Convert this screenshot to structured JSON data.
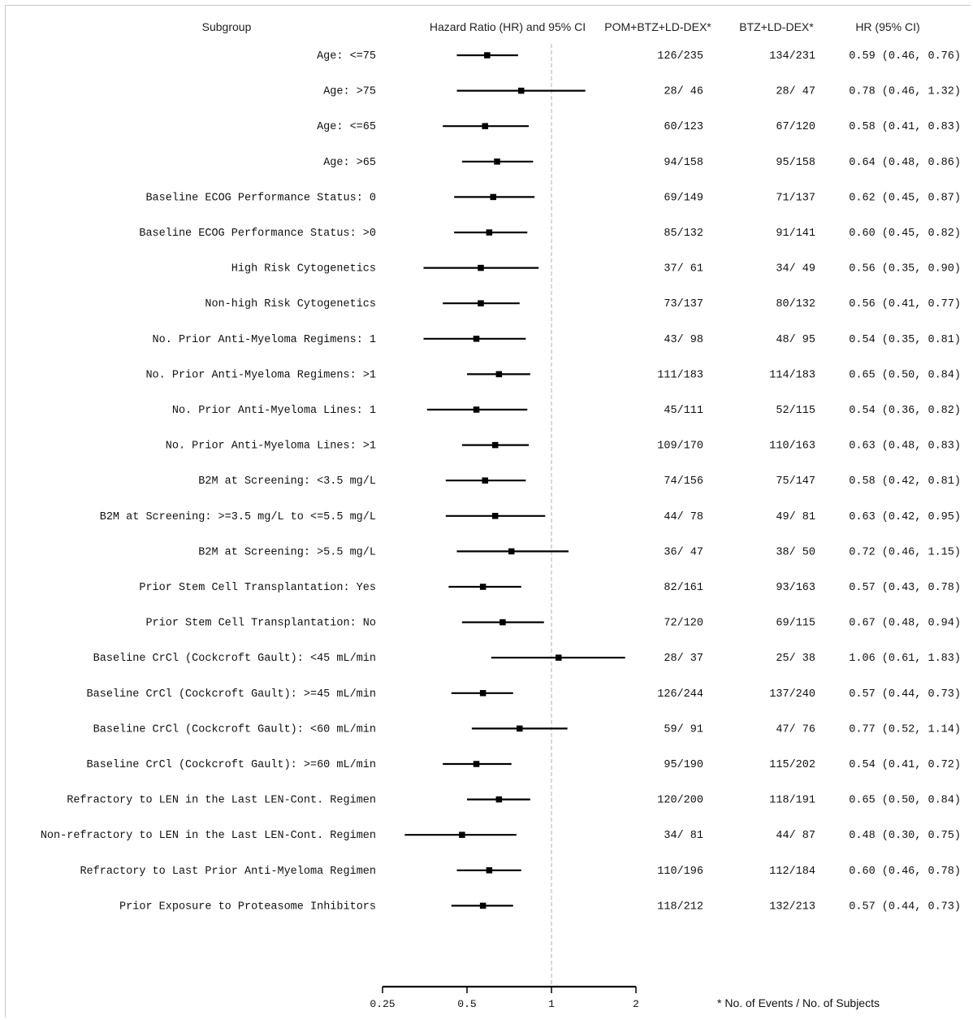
{
  "chart_data": {
    "type": "forest",
    "headers": {
      "subgroup": "Subgroup",
      "hr_plot": "Hazard Ratio (HR) and 95% CI",
      "group1": "POM+BTZ+LD-DEX*",
      "group2": "BTZ+LD-DEX*",
      "hr_ci": "HR (95% CI)"
    },
    "x_axis": {
      "scale": "log",
      "range": [
        0.25,
        2
      ],
      "ticks": [
        0.25,
        0.5,
        1,
        2
      ],
      "tick_labels": [
        "0.25",
        "0.5",
        "1",
        "2"
      ],
      "reference_line": 1
    },
    "footnote": "* No. of Events / No. of Subjects",
    "rows": [
      {
        "label": "Age: <=75",
        "hr": 0.59,
        "lo": 0.46,
        "hi": 0.76,
        "g1": "126/235",
        "g2": "134/231",
        "ci_text": "0.59 (0.46, 0.76)"
      },
      {
        "label": "Age: >75",
        "hr": 0.78,
        "lo": 0.46,
        "hi": 1.32,
        "g1": "28/ 46",
        "g2": "28/ 47",
        "ci_text": "0.78 (0.46, 1.32)"
      },
      {
        "label": "Age: <=65",
        "hr": 0.58,
        "lo": 0.41,
        "hi": 0.83,
        "g1": "60/123",
        "g2": "67/120",
        "ci_text": "0.58 (0.41, 0.83)"
      },
      {
        "label": "Age: >65",
        "hr": 0.64,
        "lo": 0.48,
        "hi": 0.86,
        "g1": "94/158",
        "g2": "95/158",
        "ci_text": "0.64 (0.48, 0.86)"
      },
      {
        "label": "Baseline ECOG Performance Status: 0",
        "hr": 0.62,
        "lo": 0.45,
        "hi": 0.87,
        "g1": "69/149",
        "g2": "71/137",
        "ci_text": "0.62 (0.45, 0.87)"
      },
      {
        "label": "Baseline ECOG Performance Status: >0",
        "hr": 0.6,
        "lo": 0.45,
        "hi": 0.82,
        "g1": "85/132",
        "g2": "91/141",
        "ci_text": "0.60 (0.45, 0.82)"
      },
      {
        "label": "High Risk Cytogenetics",
        "hr": 0.56,
        "lo": 0.35,
        "hi": 0.9,
        "g1": "37/ 61",
        "g2": "34/ 49",
        "ci_text": "0.56 (0.35, 0.90)"
      },
      {
        "label": "Non-high Risk Cytogenetics",
        "hr": 0.56,
        "lo": 0.41,
        "hi": 0.77,
        "g1": "73/137",
        "g2": "80/132",
        "ci_text": "0.56 (0.41, 0.77)"
      },
      {
        "label": "No. Prior Anti-Myeloma Regimens: 1",
        "hr": 0.54,
        "lo": 0.35,
        "hi": 0.81,
        "g1": "43/ 98",
        "g2": "48/ 95",
        "ci_text": "0.54 (0.35, 0.81)"
      },
      {
        "label": "No. Prior Anti-Myeloma Regimens: >1",
        "hr": 0.65,
        "lo": 0.5,
        "hi": 0.84,
        "g1": "111/183",
        "g2": "114/183",
        "ci_text": "0.65 (0.50, 0.84)"
      },
      {
        "label": "No. Prior Anti-Myeloma Lines: 1",
        "hr": 0.54,
        "lo": 0.36,
        "hi": 0.82,
        "g1": "45/111",
        "g2": "52/115",
        "ci_text": "0.54 (0.36, 0.82)"
      },
      {
        "label": "No. Prior Anti-Myeloma Lines: >1",
        "hr": 0.63,
        "lo": 0.48,
        "hi": 0.83,
        "g1": "109/170",
        "g2": "110/163",
        "ci_text": "0.63 (0.48, 0.83)"
      },
      {
        "label": "B2M at Screening: <3.5 mg/L",
        "hr": 0.58,
        "lo": 0.42,
        "hi": 0.81,
        "g1": "74/156",
        "g2": "75/147",
        "ci_text": "0.58 (0.42, 0.81)"
      },
      {
        "label": "B2M at Screening: >=3.5 mg/L to <=5.5 mg/L",
        "hr": 0.63,
        "lo": 0.42,
        "hi": 0.95,
        "g1": "44/ 78",
        "g2": "49/ 81",
        "ci_text": "0.63 (0.42, 0.95)"
      },
      {
        "label": "B2M at Screening: >5.5 mg/L",
        "hr": 0.72,
        "lo": 0.46,
        "hi": 1.15,
        "g1": "36/ 47",
        "g2": "38/ 50",
        "ci_text": "0.72 (0.46, 1.15)"
      },
      {
        "label": "Prior Stem Cell Transplantation: Yes",
        "hr": 0.57,
        "lo": 0.43,
        "hi": 0.78,
        "g1": "82/161",
        "g2": "93/163",
        "ci_text": "0.57 (0.43, 0.78)"
      },
      {
        "label": "Prior Stem Cell Transplantation: No",
        "hr": 0.67,
        "lo": 0.48,
        "hi": 0.94,
        "g1": "72/120",
        "g2": "69/115",
        "ci_text": "0.67 (0.48, 0.94)"
      },
      {
        "label": "Baseline CrCl (Cockcroft Gault): <45 mL/min",
        "hr": 1.06,
        "lo": 0.61,
        "hi": 1.83,
        "g1": "28/ 37",
        "g2": "25/ 38",
        "ci_text": "1.06 (0.61, 1.83)"
      },
      {
        "label": "Baseline CrCl (Cockcroft Gault): >=45 mL/min",
        "hr": 0.57,
        "lo": 0.44,
        "hi": 0.73,
        "g1": "126/244",
        "g2": "137/240",
        "ci_text": "0.57 (0.44, 0.73)"
      },
      {
        "label": "Baseline CrCl (Cockcroft Gault): <60 mL/min",
        "hr": 0.77,
        "lo": 0.52,
        "hi": 1.14,
        "g1": "59/ 91",
        "g2": "47/ 76",
        "ci_text": "0.77 (0.52, 1.14)"
      },
      {
        "label": "Baseline CrCl (Cockcroft Gault): >=60 mL/min",
        "hr": 0.54,
        "lo": 0.41,
        "hi": 0.72,
        "g1": "95/190",
        "g2": "115/202",
        "ci_text": "0.54 (0.41, 0.72)"
      },
      {
        "label": "Refractory to LEN in the Last LEN-Cont. Regimen",
        "hr": 0.65,
        "lo": 0.5,
        "hi": 0.84,
        "g1": "120/200",
        "g2": "118/191",
        "ci_text": "0.65 (0.50, 0.84)"
      },
      {
        "label": "Non-refractory to LEN in the Last LEN-Cont. Regimen",
        "hr": 0.48,
        "lo": 0.3,
        "hi": 0.75,
        "g1": "34/ 81",
        "g2": "44/ 87",
        "ci_text": "0.48 (0.30, 0.75)"
      },
      {
        "label": "Refractory to Last Prior Anti-Myeloma Regimen",
        "hr": 0.6,
        "lo": 0.46,
        "hi": 0.78,
        "g1": "110/196",
        "g2": "112/184",
        "ci_text": "0.60 (0.46, 0.78)"
      },
      {
        "label": "Prior Exposure to Proteasome Inhibitors",
        "hr": 0.57,
        "lo": 0.44,
        "hi": 0.73,
        "g1": "118/212",
        "g2": "132/213",
        "ci_text": "0.57 (0.44, 0.73)"
      }
    ]
  }
}
